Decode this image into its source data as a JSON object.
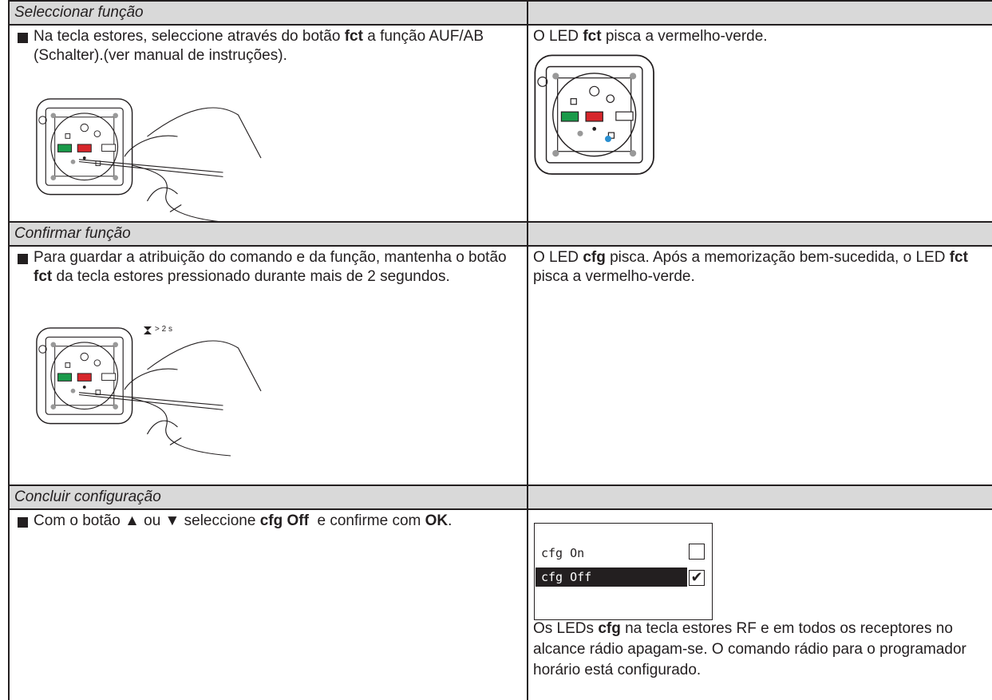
{
  "sections": [
    {
      "title": "Seleccionar função",
      "left": [
        "Na tecla estores, seleccione através do botão ",
        "fct",
        " a função AUF/AB (Schalter).(ver manual de instruções)."
      ],
      "right": [
        "O LED ",
        "fct",
        " pisca a vermelho-verde."
      ]
    },
    {
      "title": "Confirmar função",
      "left": [
        "Para guardar a atribuição do comando e da função, mantenha o botão ",
        "fct",
        " da tecla estores pressionado durante mais de 2 segundos."
      ],
      "timer_label": "> 2 s",
      "right": [
        "O LED ",
        "cfg",
        " pisca. Após a memorização bem-sucedida, o LED ",
        "fct",
        " pisca a vermelho-verde."
      ]
    },
    {
      "title": "Concluir configuração",
      "left": [
        "Com o botão ▲ ou ▼ seleccione ",
        "cfg Off",
        "  e confirme com ",
        "OK",
        "."
      ],
      "display": [
        "cfg On",
        "cfg Off"
      ],
      "right": [
        "Os LEDs ",
        "cfg",
        " na tecla estores RF e em todos os receptores no alcance rádio apagam-se. O comando rádio para o programador horário está configurado."
      ]
    }
  ]
}
